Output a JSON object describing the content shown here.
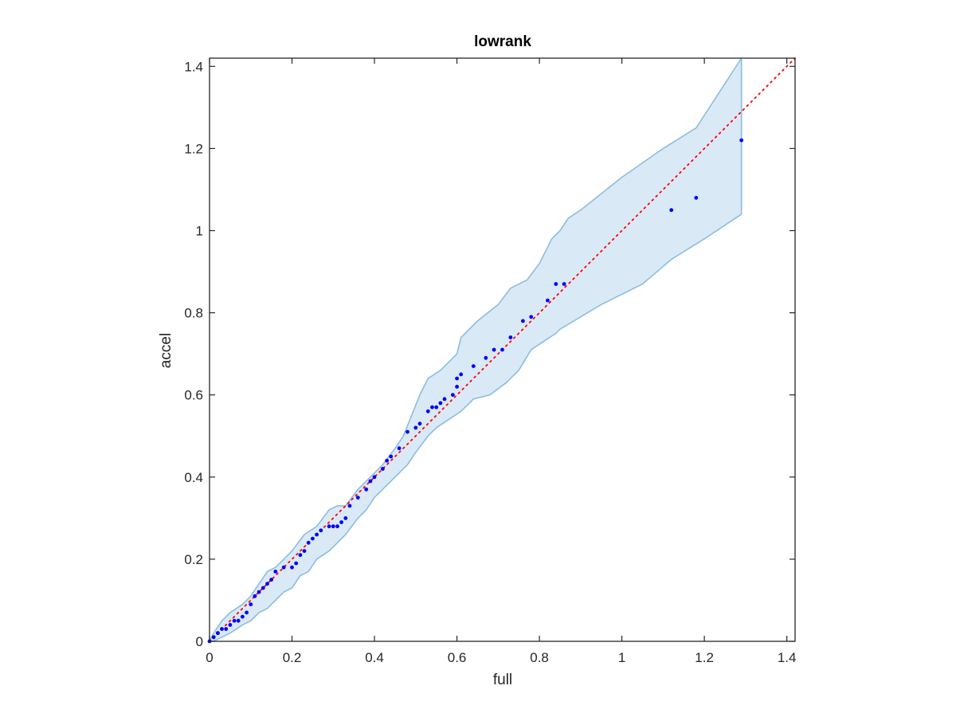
{
  "chart_data": {
    "type": "scatter",
    "title": "lowrank",
    "xlabel": "full",
    "ylabel": "accel",
    "xlim": [
      0,
      1.42
    ],
    "ylim": [
      0,
      1.42
    ],
    "xticks": [
      0,
      0.2,
      0.4,
      0.6,
      0.8,
      1,
      1.2,
      1.4
    ],
    "yticks": [
      0,
      0.2,
      0.4,
      0.6,
      0.8,
      1,
      1.2,
      1.4
    ],
    "xtick_labels": [
      "0",
      "0.2",
      "0.4",
      "0.6",
      "0.8",
      "1",
      "1.2",
      "1.4"
    ],
    "ytick_labels": [
      "0",
      "0.2",
      "0.4",
      "0.6",
      "0.8",
      "1",
      "1.2",
      "1.4"
    ],
    "grid": false,
    "reference_line": {
      "from": [
        0,
        0
      ],
      "to": [
        1.42,
        1.42
      ],
      "color": "#ff0000",
      "style": "dotted"
    },
    "band": {
      "fill": "#d9e9f5",
      "edge": "#8bbde0",
      "upper": [
        [
          0,
          0
        ],
        [
          0.01,
          0.02
        ],
        [
          0.03,
          0.05
        ],
        [
          0.05,
          0.07
        ],
        [
          0.08,
          0.09
        ],
        [
          0.1,
          0.11
        ],
        [
          0.12,
          0.14
        ],
        [
          0.14,
          0.17
        ],
        [
          0.16,
          0.18
        ],
        [
          0.18,
          0.2
        ],
        [
          0.2,
          0.22
        ],
        [
          0.23,
          0.26
        ],
        [
          0.26,
          0.28
        ],
        [
          0.29,
          0.32
        ],
        [
          0.31,
          0.33
        ],
        [
          0.33,
          0.33
        ],
        [
          0.36,
          0.37
        ],
        [
          0.39,
          0.4
        ],
        [
          0.42,
          0.43
        ],
        [
          0.45,
          0.47
        ],
        [
          0.47,
          0.5
        ],
        [
          0.49,
          0.55
        ],
        [
          0.51,
          0.6
        ],
        [
          0.53,
          0.64
        ],
        [
          0.56,
          0.66
        ],
        [
          0.6,
          0.7
        ],
        [
          0.61,
          0.74
        ],
        [
          0.65,
          0.78
        ],
        [
          0.7,
          0.82
        ],
        [
          0.73,
          0.86
        ],
        [
          0.77,
          0.88
        ],
        [
          0.8,
          0.92
        ],
        [
          0.83,
          0.98
        ],
        [
          0.85,
          1.0
        ],
        [
          0.87,
          1.03
        ],
        [
          0.9,
          1.05
        ],
        [
          1.0,
          1.13
        ],
        [
          1.1,
          1.2
        ],
        [
          1.18,
          1.25
        ],
        [
          1.29,
          1.42
        ]
      ],
      "lower": [
        [
          1.29,
          1.04
        ],
        [
          1.2,
          0.98
        ],
        [
          1.12,
          0.93
        ],
        [
          1.05,
          0.87
        ],
        [
          0.95,
          0.82
        ],
        [
          0.85,
          0.76
        ],
        [
          0.84,
          0.75
        ],
        [
          0.78,
          0.71
        ],
        [
          0.75,
          0.66
        ],
        [
          0.72,
          0.63
        ],
        [
          0.68,
          0.6
        ],
        [
          0.64,
          0.59
        ],
        [
          0.61,
          0.56
        ],
        [
          0.58,
          0.54
        ],
        [
          0.55,
          0.52
        ],
        [
          0.53,
          0.5
        ],
        [
          0.5,
          0.46
        ],
        [
          0.48,
          0.43
        ],
        [
          0.45,
          0.4
        ],
        [
          0.43,
          0.38
        ],
        [
          0.4,
          0.35
        ],
        [
          0.38,
          0.32
        ],
        [
          0.36,
          0.3
        ],
        [
          0.33,
          0.26
        ],
        [
          0.31,
          0.24
        ],
        [
          0.29,
          0.22
        ],
        [
          0.26,
          0.2
        ],
        [
          0.24,
          0.17
        ],
        [
          0.22,
          0.16
        ],
        [
          0.2,
          0.13
        ],
        [
          0.18,
          0.12
        ],
        [
          0.16,
          0.1
        ],
        [
          0.14,
          0.08
        ],
        [
          0.12,
          0.07
        ],
        [
          0.1,
          0.05
        ],
        [
          0.08,
          0.04
        ],
        [
          0.05,
          0.02
        ],
        [
          0.03,
          0.01
        ],
        [
          0.01,
          0.0
        ],
        [
          0,
          0
        ]
      ]
    },
    "series": [
      {
        "marker_color": "#0000ff",
        "x": [
          0.0,
          0.01,
          0.01,
          0.02,
          0.02,
          0.03,
          0.04,
          0.05,
          0.06,
          0.07,
          0.08,
          0.09,
          0.1,
          0.11,
          0.12,
          0.13,
          0.14,
          0.15,
          0.16,
          0.18,
          0.2,
          0.21,
          0.22,
          0.23,
          0.24,
          0.25,
          0.26,
          0.27,
          0.29,
          0.3,
          0.31,
          0.32,
          0.33,
          0.34,
          0.36,
          0.38,
          0.39,
          0.4,
          0.42,
          0.43,
          0.44,
          0.46,
          0.48,
          0.5,
          0.51,
          0.53,
          0.54,
          0.55,
          0.56,
          0.57,
          0.59,
          0.6,
          0.6,
          0.61,
          0.64,
          0.67,
          0.69,
          0.71,
          0.73,
          0.76,
          0.78,
          0.82,
          0.84,
          0.86,
          1.12,
          1.18,
          1.29
        ],
        "y": [
          0.0,
          0.01,
          0.01,
          0.02,
          0.02,
          0.03,
          0.03,
          0.04,
          0.05,
          0.05,
          0.06,
          0.07,
          0.09,
          0.11,
          0.12,
          0.13,
          0.14,
          0.15,
          0.17,
          0.18,
          0.18,
          0.19,
          0.21,
          0.22,
          0.24,
          0.25,
          0.26,
          0.27,
          0.28,
          0.28,
          0.28,
          0.29,
          0.3,
          0.33,
          0.35,
          0.37,
          0.39,
          0.4,
          0.42,
          0.44,
          0.45,
          0.47,
          0.51,
          0.52,
          0.53,
          0.56,
          0.57,
          0.57,
          0.58,
          0.59,
          0.6,
          0.62,
          0.64,
          0.65,
          0.67,
          0.69,
          0.71,
          0.71,
          0.74,
          0.78,
          0.79,
          0.83,
          0.87,
          0.87,
          1.05,
          1.08,
          1.22
        ]
      }
    ]
  }
}
